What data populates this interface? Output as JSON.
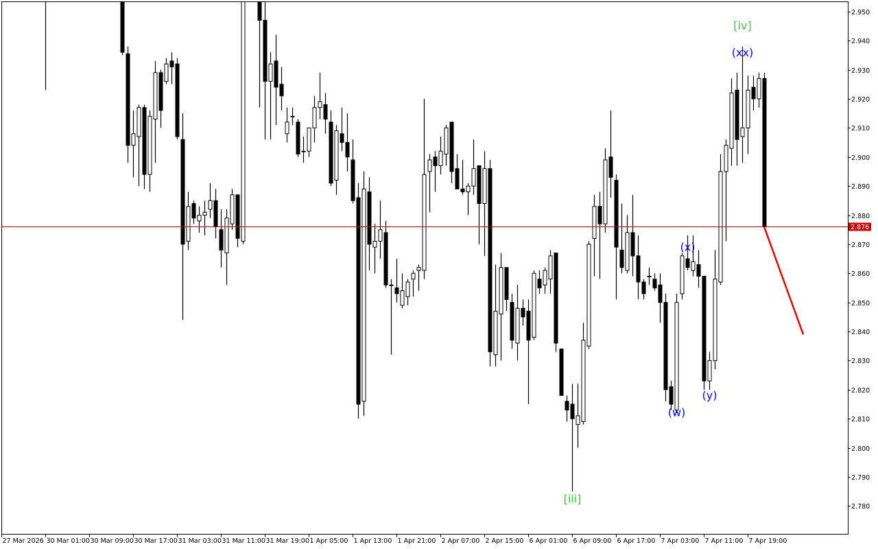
{
  "chart_data": {
    "type": "candlestick",
    "title": "",
    "xlabel": "",
    "ylabel": "",
    "ylim": [
      2.7704,
      2.9535
    ],
    "grid": false,
    "candle_format": [
      "open",
      "high",
      "low",
      "close"
    ],
    "bull_color": "#ffffff",
    "bear_color": "#000000",
    "candles": [
      [
        2.965,
        2.97,
        2.923,
        2.96
      ],
      null,
      null,
      null,
      null,
      null,
      null,
      null,
      null,
      null,
      null,
      null,
      null,
      null,
      [
        2.958,
        2.96,
        2.935,
        2.936
      ],
      [
        2.9355,
        2.938,
        2.898,
        2.904
      ],
      [
        2.904,
        2.916,
        2.893,
        2.908
      ],
      [
        2.907,
        2.918,
        2.89,
        2.917
      ],
      [
        2.917,
        2.918,
        2.889,
        2.894
      ],
      [
        2.894,
        2.916,
        2.888,
        2.914
      ],
      [
        2.913,
        2.933,
        2.898,
        2.929
      ],
      [
        2.929,
        2.93,
        2.91,
        2.916
      ],
      [
        2.926,
        2.934,
        2.925,
        2.932
      ],
      [
        2.933,
        2.936,
        2.925,
        2.931
      ],
      [
        2.932,
        2.934,
        2.906,
        2.907
      ],
      [
        2.906,
        2.915,
        2.844,
        2.87
      ],
      [
        2.871,
        2.888,
        2.868,
        2.883
      ],
      [
        2.884,
        2.885,
        2.877,
        2.879
      ],
      [
        2.878,
        2.883,
        2.874,
        2.88
      ],
      [
        2.88,
        2.885,
        2.873,
        2.881
      ],
      [
        2.882,
        2.891,
        2.879,
        2.885
      ],
      [
        2.885,
        2.889,
        2.872,
        2.876
      ],
      [
        2.875,
        2.882,
        2.862,
        2.868
      ],
      [
        2.867,
        2.882,
        2.856,
        2.879
      ],
      [
        2.877,
        2.889,
        2.875,
        2.887
      ],
      [
        2.887,
        2.887,
        2.869,
        2.872
      ],
      [
        2.871,
        2.97,
        2.87,
        2.96
      ],
      null,
      null,
      [
        2.955,
        2.96,
        2.917,
        2.947
      ],
      [
        2.947,
        2.955,
        2.906,
        2.926
      ],
      [
        2.926,
        2.936,
        2.906,
        2.932
      ],
      [
        2.933,
        2.942,
        2.911,
        2.924
      ],
      [
        2.925,
        2.931,
        2.916,
        2.921
      ],
      [
        2.908,
        2.917,
        2.905,
        2.912
      ],
      [
        2.914,
        2.917,
        2.911,
        2.914
      ],
      [
        2.912,
        2.913,
        2.9,
        2.901
      ],
      [
        2.902,
        2.907,
        2.898,
        2.902
      ],
      [
        2.902,
        2.91,
        2.9,
        2.91
      ],
      [
        2.91,
        2.921,
        2.905,
        2.917
      ],
      [
        2.917,
        2.929,
        2.913,
        2.919
      ],
      [
        2.918,
        2.922,
        2.908,
        2.913
      ],
      [
        2.912,
        2.916,
        2.89,
        2.891
      ],
      [
        2.892,
        2.911,
        2.887,
        2.909
      ],
      [
        2.908,
        2.917,
        2.902,
        2.905
      ],
      [
        2.905,
        2.915,
        2.895,
        2.9
      ],
      [
        2.899,
        2.906,
        2.884,
        2.885
      ],
      [
        2.886,
        2.891,
        2.81,
        2.815
      ],
      [
        2.816,
        2.895,
        2.811,
        2.889
      ],
      [
        2.888,
        2.893,
        2.861,
        2.87
      ],
      [
        2.869,
        2.877,
        2.86,
        2.871
      ],
      [
        2.871,
        2.885,
        2.865,
        2.875
      ],
      [
        2.874,
        2.878,
        2.855,
        2.856
      ],
      [
        2.856,
        2.858,
        2.832,
        2.856
      ],
      [
        2.855,
        2.865,
        2.85,
        2.853
      ],
      [
        2.849,
        2.86,
        2.848,
        2.854
      ],
      [
        2.852,
        2.858,
        2.849,
        2.857
      ],
      [
        2.858,
        2.861,
        2.852,
        2.86
      ],
      [
        2.861,
        2.863,
        2.854,
        2.862
      ],
      [
        2.861,
        2.92,
        2.858,
        2.894
      ],
      [
        2.895,
        2.901,
        2.881,
        2.899
      ],
      [
        2.9,
        2.902,
        2.888,
        2.897
      ],
      [
        2.897,
        2.907,
        2.894,
        2.902
      ],
      [
        2.901,
        2.911,
        2.897,
        2.91
      ],
      [
        2.912,
        2.912,
        2.891,
        2.895
      ],
      [
        2.896,
        2.901,
        2.889,
        2.889
      ],
      [
        2.889,
        2.899,
        2.887,
        2.888
      ],
      [
        2.888,
        2.891,
        2.88,
        2.89
      ],
      [
        2.89,
        2.906,
        2.887,
        2.896
      ],
      [
        2.897,
        2.897,
        2.87,
        2.884
      ],
      [
        2.884,
        2.902,
        2.866,
        2.896
      ],
      [
        2.896,
        2.899,
        2.828,
        2.833
      ],
      [
        2.832,
        2.863,
        2.828,
        2.847
      ],
      [
        2.846,
        2.867,
        2.83,
        2.862
      ],
      [
        2.862,
        2.862,
        2.847,
        2.851
      ],
      [
        2.85,
        2.853,
        2.834,
        2.837
      ],
      [
        2.836,
        2.856,
        2.83,
        2.848
      ],
      [
        2.848,
        2.851,
        2.842,
        2.845
      ],
      [
        2.847,
        2.851,
        2.815,
        2.837
      ],
      [
        2.838,
        2.861,
        2.837,
        2.86
      ],
      [
        2.858,
        2.861,
        2.853,
        2.855
      ],
      [
        2.856,
        2.862,
        2.853,
        2.861
      ],
      [
        2.858,
        2.868,
        2.853,
        2.866
      ],
      [
        2.867,
        2.867,
        2.833,
        2.836
      ],
      [
        2.834,
        2.834,
        2.818,
        2.818
      ],
      [
        2.816,
        2.818,
        2.809,
        2.813
      ],
      [
        2.815,
        2.822,
        2.785,
        2.81
      ],
      [
        2.808,
        2.822,
        2.8,
        2.811
      ],
      [
        2.809,
        2.843,
        2.808,
        2.837
      ],
      [
        2.835,
        2.871,
        2.834,
        2.87
      ],
      [
        2.872,
        2.887,
        2.859,
        2.883
      ],
      [
        2.883,
        2.888,
        2.858,
        2.877
      ],
      [
        2.877,
        2.903,
        2.874,
        2.899
      ],
      [
        2.9,
        2.916,
        2.886,
        2.893
      ],
      [
        2.892,
        2.894,
        2.851,
        2.869
      ],
      [
        2.868,
        2.884,
        2.86,
        2.862
      ],
      [
        2.861,
        2.88,
        2.86,
        2.874
      ],
      [
        2.874,
        2.887,
        2.859,
        2.866
      ],
      [
        2.866,
        2.873,
        2.851,
        2.857
      ],
      [
        2.857,
        2.858,
        2.851,
        2.853
      ],
      [
        2.859,
        2.862,
        2.856,
        2.859
      ],
      [
        2.858,
        2.86,
        2.854,
        2.855
      ],
      [
        2.856,
        2.86,
        2.843,
        2.85
      ],
      [
        2.85,
        2.853,
        2.816,
        2.82
      ],
      [
        2.821,
        2.823,
        2.813,
        2.815
      ],
      [
        2.813,
        2.853,
        2.812,
        2.85
      ],
      [
        2.853,
        2.867,
        2.851,
        2.866
      ],
      [
        2.865,
        2.873,
        2.861,
        2.862
      ],
      [
        2.861,
        2.873,
        2.859,
        2.864
      ],
      [
        2.863,
        2.868,
        2.855,
        2.859
      ],
      [
        2.859,
        2.859,
        2.82,
        2.823
      ],
      [
        2.823,
        2.833,
        2.82,
        2.83
      ],
      [
        2.83,
        2.868,
        2.827,
        2.858
      ],
      [
        2.857,
        2.901,
        2.856,
        2.895
      ],
      [
        2.895,
        2.906,
        2.871,
        2.904
      ],
      [
        2.903,
        2.927,
        2.897,
        2.922
      ],
      [
        2.923,
        2.929,
        2.897,
        2.906
      ],
      [
        2.907,
        2.938,
        2.898,
        2.91
      ],
      [
        2.91,
        2.928,
        2.901,
        2.923
      ],
      [
        2.924,
        2.928,
        2.916,
        2.92
      ],
      [
        2.92,
        2.929,
        2.917,
        2.927
      ],
      [
        2.927,
        2.929,
        2.876,
        2.876
      ]
    ],
    "y_ticks": [
      "2.950",
      "2.940",
      "2.930",
      "2.920",
      "2.910",
      "2.900",
      "2.890",
      "2.880",
      "2.870",
      "2.860",
      "2.850",
      "2.840",
      "2.830",
      "2.820",
      "2.810",
      "2.800",
      "2.790",
      "2.780"
    ],
    "x_ticks": [
      {
        "bar": -8,
        "label": "27 Mar 2026"
      },
      {
        "bar": 0,
        "label": "30 Mar 01:00"
      },
      {
        "bar": 8,
        "label": "30 Mar 09:00"
      },
      {
        "bar": 16,
        "label": "30 Mar 17:00"
      },
      {
        "bar": 24,
        "label": "31 Mar 03:00"
      },
      {
        "bar": 32,
        "label": "31 Mar 11:00"
      },
      {
        "bar": 40,
        "label": "31 Mar 19:00"
      },
      {
        "bar": 48,
        "label": "1 Apr 05:00"
      },
      {
        "bar": 56,
        "label": "1 Apr 13:00"
      },
      {
        "bar": 64,
        "label": "1 Apr 21:00"
      },
      {
        "bar": 72,
        "label": "2 Apr 07:00"
      },
      {
        "bar": 80,
        "label": "2 Apr 15:00"
      },
      {
        "bar": 88,
        "label": "6 Apr 01:00"
      },
      {
        "bar": 96,
        "label": "6 Apr 09:00"
      },
      {
        "bar": 104,
        "label": "6 Apr 17:00"
      },
      {
        "bar": 112,
        "label": "7 Apr 03:00"
      },
      {
        "bar": 120,
        "label": "7 Apr 11:00"
      },
      {
        "bar": 128,
        "label": "7 Apr 19:00"
      }
    ],
    "current_price": {
      "value": 2.876,
      "label": "2.876",
      "line_color": "#b00000",
      "label_bg": "#cc0000"
    },
    "annotations": [
      {
        "text": "[iii]",
        "bar": 96,
        "price": 2.7825,
        "color": "#33cc33"
      },
      {
        "text": "[iv]",
        "bar": 127,
        "price": 2.9453,
        "color": "#33cc33"
      },
      {
        "text": "(xx)",
        "bar": 127,
        "price": 2.936,
        "color": "#0000ff"
      },
      {
        "text": "(x)",
        "bar": 117,
        "price": 2.8692,
        "color": "#0000ff"
      },
      {
        "text": "(w)",
        "bar": 115,
        "price": 2.8123,
        "color": "#0000ff"
      },
      {
        "text": "(y)",
        "bar": 121,
        "price": 2.8182,
        "color": "#0000ff"
      }
    ],
    "forecast": {
      "from": {
        "bar": 131,
        "price": 2.876
      },
      "to": {
        "bar": 138,
        "price": 2.839
      },
      "color": "#ee0000"
    }
  }
}
